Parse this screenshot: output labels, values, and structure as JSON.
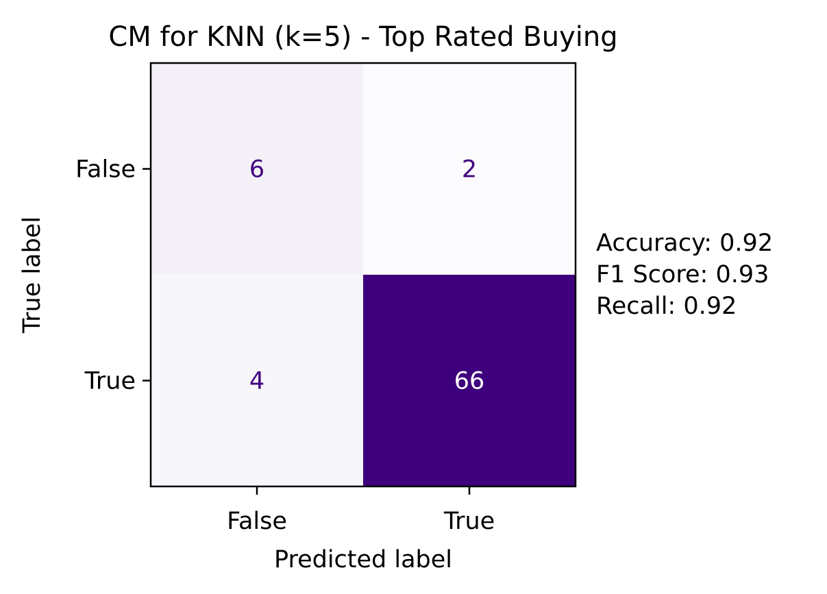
{
  "chart_data": {
    "type": "heatmap",
    "title": "CM for KNN (k=5) - Top Rated Buying",
    "xlabel": "Predicted label",
    "ylabel": "True label",
    "x_categories": [
      "False",
      "True"
    ],
    "y_categories": [
      "False",
      "True"
    ],
    "matrix": [
      [
        6,
        2
      ],
      [
        4,
        66
      ]
    ],
    "colormap": "Purples",
    "cell_colors": [
      [
        "#f3f1f7",
        "#fbfafd"
      ],
      [
        "#f7f6fa",
        "#3f007d"
      ]
    ],
    "annotation_colors": [
      [
        "#3f007d",
        "#3f007d"
      ],
      [
        "#3f007d",
        "#ffffff"
      ]
    ],
    "grid": false,
    "colorbar": false
  },
  "metrics": {
    "accuracy": "Accuracy: 0.92",
    "f1": "F1 Score: 0.93",
    "recall": "Recall: 0.92"
  }
}
